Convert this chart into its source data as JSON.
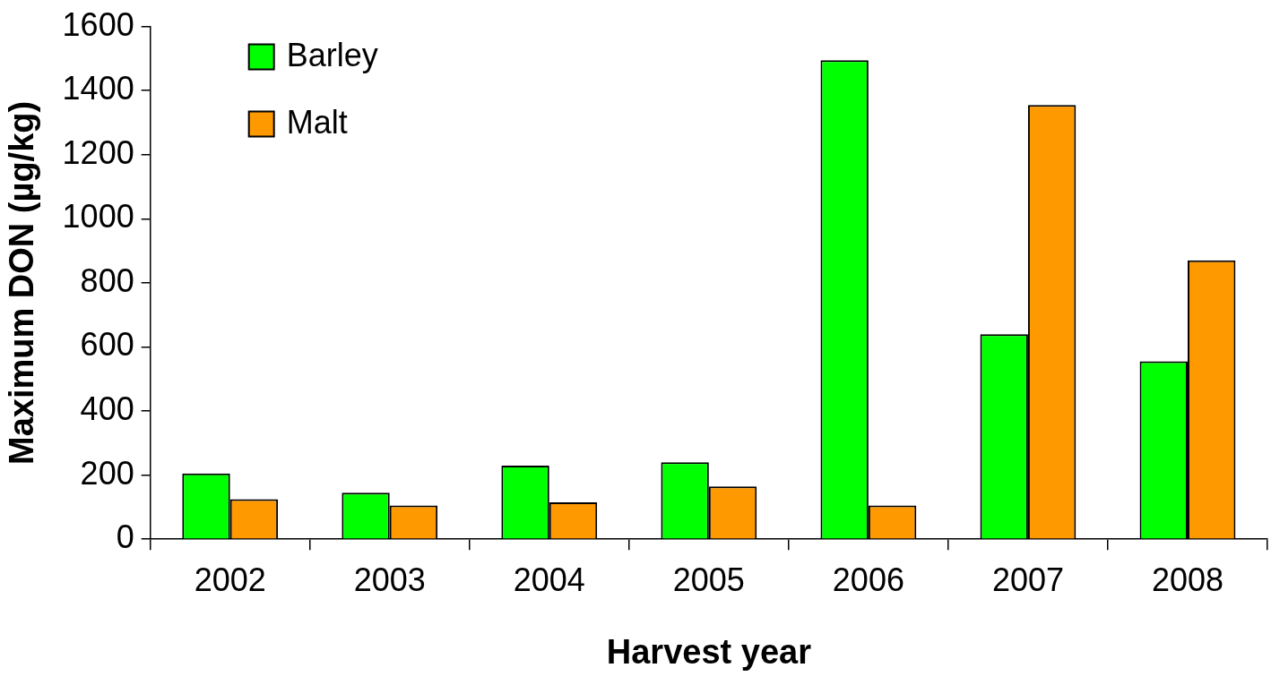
{
  "chart_data": {
    "type": "bar",
    "xlabel": "Harvest year",
    "ylabel": "Maximum DON (µg/kg)",
    "categories": [
      "2002",
      "2003",
      "2004",
      "2005",
      "2006",
      "2007",
      "2008"
    ],
    "series": [
      {
        "name": "Barley",
        "color": "#00ff00",
        "values": [
          205,
          145,
          230,
          240,
          1495,
          640,
          555
        ]
      },
      {
        "name": "Malt",
        "color": "#ff9900",
        "values": [
          125,
          105,
          115,
          165,
          105,
          1355,
          870
        ]
      }
    ],
    "ylim": [
      0,
      1600
    ],
    "yticks": [
      0,
      200,
      400,
      600,
      800,
      1000,
      1200,
      1400,
      1600
    ],
    "grid": false,
    "legend": "top left"
  }
}
